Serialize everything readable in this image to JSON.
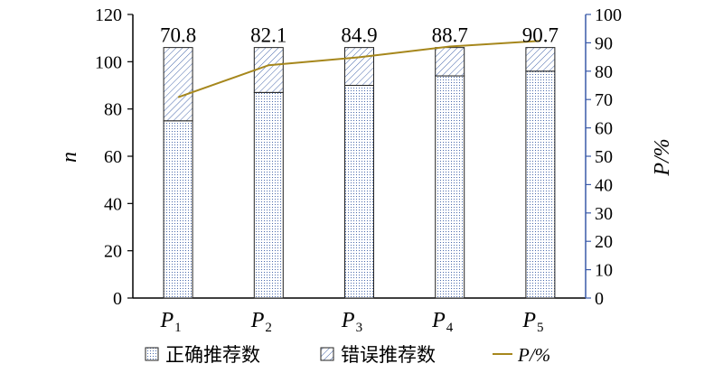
{
  "chart_data": {
    "type": "bar",
    "stacked": true,
    "categories": [
      "P1",
      "P2",
      "P3",
      "P4",
      "P5"
    ],
    "category_display": [
      {
        "main": "P",
        "sub": "1"
      },
      {
        "main": "P",
        "sub": "2"
      },
      {
        "main": "P",
        "sub": "3"
      },
      {
        "main": "P",
        "sub": "4"
      },
      {
        "main": "P",
        "sub": "5"
      }
    ],
    "series": [
      {
        "name": "正确推荐数",
        "type": "bar",
        "axis": "left",
        "values": [
          75,
          87,
          90,
          94,
          96
        ],
        "pattern": "dotted",
        "color": "#3a5aa8"
      },
      {
        "name": "错误推荐数",
        "type": "bar",
        "axis": "left",
        "values": [
          31,
          19,
          16,
          12,
          10
        ],
        "pattern": "hatched",
        "color": "#3a5aa8"
      },
      {
        "name": "P/%",
        "type": "line",
        "axis": "right",
        "values": [
          70.8,
          82.1,
          84.9,
          88.7,
          90.7
        ],
        "color": "#a6871c"
      }
    ],
    "data_labels": [
      "70.8",
      "82.1",
      "84.9",
      "88.7",
      "90.7"
    ],
    "ylabel": "n",
    "ylabel_right": "P/%",
    "ylim": [
      0,
      120
    ],
    "ylim_right": [
      0,
      100
    ],
    "yticks": [
      0,
      20,
      40,
      60,
      80,
      100,
      120
    ],
    "yticks_right": [
      0,
      10,
      20,
      30,
      40,
      50,
      60,
      70,
      80,
      90,
      100
    ],
    "grid": false,
    "legend_position": "bottom",
    "legend": [
      {
        "label": "正确推荐数",
        "kind": "dotted-box"
      },
      {
        "label": "错误推荐数",
        "kind": "hatched-box"
      },
      {
        "label": "P/%",
        "kind": "line"
      }
    ]
  }
}
